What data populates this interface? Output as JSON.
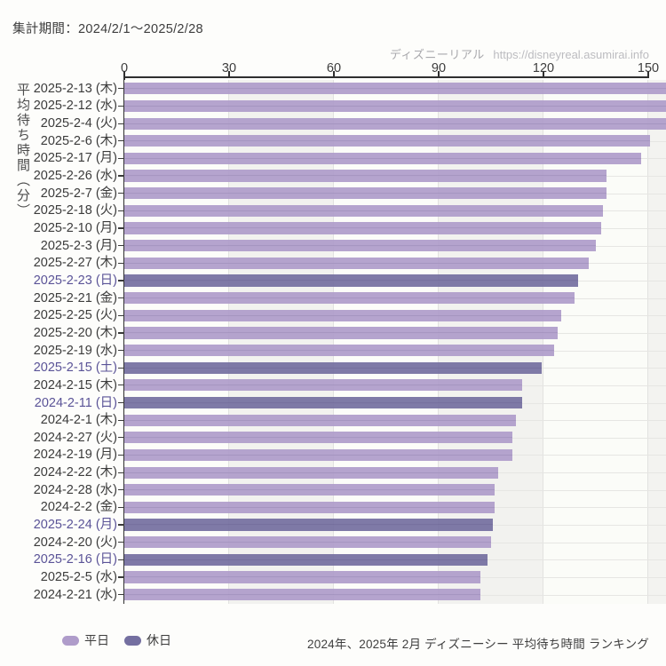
{
  "header": {
    "period_label": "集計期間：2024/2/1〜2025/2/28"
  },
  "watermark": {
    "brand": "ディズニーリアル",
    "url": "https://disneyreal.asumirai.info"
  },
  "footer": {
    "caption": "2024年、2025年 2月 ディズニーシー 平均待ち時間 ランキング"
  },
  "chart_data": {
    "type": "bar",
    "orientation": "horizontal",
    "ylabel": "平均待ち時間（分）",
    "xlabel": "",
    "xlim": [
      0,
      155
    ],
    "x_ticks": [
      0,
      30,
      60,
      90,
      120,
      150
    ],
    "grid": true,
    "legend_position": "bottom-left",
    "series_colors": {
      "weekday": "#af9cca",
      "holiday": "#746fa0"
    },
    "holiday_label_color": "#5a5397",
    "legend": [
      {
        "label": "平日",
        "key": "weekday"
      },
      {
        "label": "休日",
        "key": "holiday"
      }
    ],
    "bars": [
      {
        "label": "2025-2-13 (木)",
        "value": 157,
        "day": "weekday"
      },
      {
        "label": "2025-2-12 (水)",
        "value": 156.5,
        "day": "weekday"
      },
      {
        "label": "2025-2-4 (火)",
        "value": 156,
        "day": "weekday"
      },
      {
        "label": "2025-2-6 (木)",
        "value": 150.5,
        "day": "weekday"
      },
      {
        "label": "2025-2-17 (月)",
        "value": 148,
        "day": "weekday"
      },
      {
        "label": "2025-2-26 (水)",
        "value": 138,
        "day": "weekday"
      },
      {
        "label": "2025-2-7 (金)",
        "value": 138,
        "day": "weekday"
      },
      {
        "label": "2025-2-18 (火)",
        "value": 137,
        "day": "weekday"
      },
      {
        "label": "2025-2-10 (月)",
        "value": 136.5,
        "day": "weekday"
      },
      {
        "label": "2025-2-3 (月)",
        "value": 135,
        "day": "weekday"
      },
      {
        "label": "2025-2-27 (木)",
        "value": 133,
        "day": "weekday"
      },
      {
        "label": "2025-2-23 (日)",
        "value": 130,
        "day": "holiday"
      },
      {
        "label": "2025-2-21 (金)",
        "value": 129,
        "day": "weekday"
      },
      {
        "label": "2025-2-25 (火)",
        "value": 125,
        "day": "weekday"
      },
      {
        "label": "2025-2-20 (木)",
        "value": 124,
        "day": "weekday"
      },
      {
        "label": "2025-2-19 (水)",
        "value": 123,
        "day": "weekday"
      },
      {
        "label": "2025-2-15 (土)",
        "value": 119.5,
        "day": "holiday"
      },
      {
        "label": "2024-2-15 (木)",
        "value": 114,
        "day": "weekday"
      },
      {
        "label": "2024-2-11 (日)",
        "value": 114,
        "day": "holiday"
      },
      {
        "label": "2024-2-1 (木)",
        "value": 112,
        "day": "weekday"
      },
      {
        "label": "2024-2-27 (火)",
        "value": 111,
        "day": "weekday"
      },
      {
        "label": "2024-2-19 (月)",
        "value": 111,
        "day": "weekday"
      },
      {
        "label": "2024-2-22 (木)",
        "value": 107,
        "day": "weekday"
      },
      {
        "label": "2024-2-28 (水)",
        "value": 106,
        "day": "weekday"
      },
      {
        "label": "2024-2-2 (金)",
        "value": 106,
        "day": "weekday"
      },
      {
        "label": "2025-2-24 (月)",
        "value": 105.5,
        "day": "holiday"
      },
      {
        "label": "2024-2-20 (火)",
        "value": 105,
        "day": "weekday"
      },
      {
        "label": "2025-2-16 (日)",
        "value": 104,
        "day": "holiday"
      },
      {
        "label": "2025-2-5 (水)",
        "value": 102,
        "day": "weekday"
      },
      {
        "label": "2024-2-21 (水)",
        "value": 102,
        "day": "weekday"
      }
    ]
  }
}
